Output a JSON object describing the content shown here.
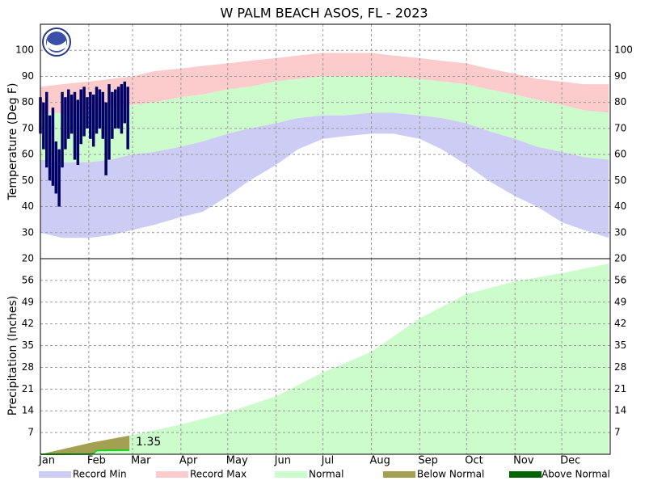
{
  "chart_data": [
    {
      "type": "band",
      "title": "W PALM BEACH ASOS, FL - 2023",
      "ylabel": "Temperature (Deg F)",
      "x": [
        1,
        15,
        32,
        46,
        60,
        74,
        91,
        105,
        121,
        135,
        152,
        166,
        182,
        196,
        213,
        227,
        244,
        258,
        274,
        288,
        305,
        319,
        335,
        349,
        365
      ],
      "record_max": [
        86,
        87,
        88,
        89,
        90,
        92,
        93,
        94,
        95,
        96,
        97,
        98,
        99,
        99,
        99,
        98,
        97,
        96,
        95,
        93,
        91,
        89,
        88,
        87,
        87
      ],
      "normal_high": [
        76,
        76,
        77,
        78,
        79,
        80,
        82,
        83,
        85,
        86,
        88,
        89,
        90,
        90,
        90,
        90,
        89,
        88,
        87,
        85,
        83,
        81,
        79,
        77,
        76
      ],
      "normal_low": [
        58,
        57,
        57,
        58,
        60,
        61,
        63,
        65,
        68,
        70,
        72,
        74,
        75,
        75,
        76,
        76,
        75,
        74,
        72,
        69,
        66,
        63,
        61,
        59,
        58
      ],
      "record_min": [
        30,
        28,
        28,
        29,
        31,
        33,
        36,
        38,
        44,
        50,
        56,
        62,
        66,
        67,
        68,
        68,
        66,
        62,
        56,
        50,
        44,
        40,
        34,
        31,
        28
      ],
      "observed": {
        "color": "#000066",
        "x": [
          1,
          3,
          5,
          7,
          9,
          11,
          13,
          15,
          17,
          19,
          21,
          23,
          25,
          27,
          29,
          31,
          33,
          35,
          37,
          39,
          41,
          43,
          45,
          47,
          49,
          51,
          53,
          55,
          57
        ],
        "high": [
          82,
          80,
          84,
          75,
          78,
          65,
          62,
          84,
          82,
          85,
          83,
          84,
          81,
          85,
          86,
          82,
          84,
          83,
          86,
          85,
          84,
          80,
          87,
          84,
          85,
          86,
          87,
          88,
          86
        ],
        "low": [
          68,
          62,
          55,
          50,
          48,
          45,
          40,
          55,
          62,
          66,
          68,
          58,
          56,
          64,
          67,
          70,
          66,
          63,
          68,
          70,
          66,
          52,
          58,
          66,
          70,
          70,
          68,
          72,
          62
        ]
      },
      "xlim": [
        1,
        366
      ],
      "ylim": [
        20,
        110
      ],
      "yticks": [
        20,
        30,
        40,
        50,
        60,
        70,
        80,
        90,
        100
      ],
      "grid": true
    },
    {
      "type": "area",
      "ylabel": "Precipitation (Inches)",
      "x": [
        1,
        32,
        60,
        91,
        121,
        152,
        182,
        213,
        244,
        274,
        305,
        335,
        365
      ],
      "normal": [
        0,
        3.6,
        6.2,
        9.6,
        13.5,
        18.7,
        26.4,
        33,
        43.8,
        51.6,
        55.7,
        58.3,
        61.4
      ],
      "observed": {
        "color": "#22cc22",
        "x": [
          1,
          33,
          35,
          37,
          45,
          58
        ],
        "values": [
          0,
          0.05,
          0.3,
          1.2,
          1.3,
          1.35
        ],
        "value_labels": [
          null,
          null,
          null,
          null,
          null,
          "1.35"
        ]
      },
      "xlim": [
        1,
        366
      ],
      "ylim": [
        0,
        63
      ],
      "yticks": [
        7,
        14,
        21,
        28,
        35,
        42,
        49,
        56
      ],
      "grid": true,
      "xticks": [
        {
          "value": 1,
          "label": "Jan"
        },
        {
          "value": 32,
          "label": "Feb"
        },
        {
          "value": 60,
          "label": "Mar"
        },
        {
          "value": 91,
          "label": "Apr"
        },
        {
          "value": 121,
          "label": "May"
        },
        {
          "value": 152,
          "label": "Jun"
        },
        {
          "value": 182,
          "label": "Jul"
        },
        {
          "value": 213,
          "label": "Aug"
        },
        {
          "value": 244,
          "label": "Sep"
        },
        {
          "value": 274,
          "label": "Oct"
        },
        {
          "value": 305,
          "label": "Nov"
        },
        {
          "value": 335,
          "label": "Dec"
        }
      ]
    }
  ],
  "legend": [
    {
      "name": "Record Min",
      "color": "#ccccf5"
    },
    {
      "name": "Record Max",
      "color": "#fccccc"
    },
    {
      "name": "Normal",
      "color": "#ccfccc"
    },
    {
      "name": "Below Normal",
      "color": "#a3a052"
    },
    {
      "name": "Above Normal",
      "color": "#006400"
    }
  ]
}
